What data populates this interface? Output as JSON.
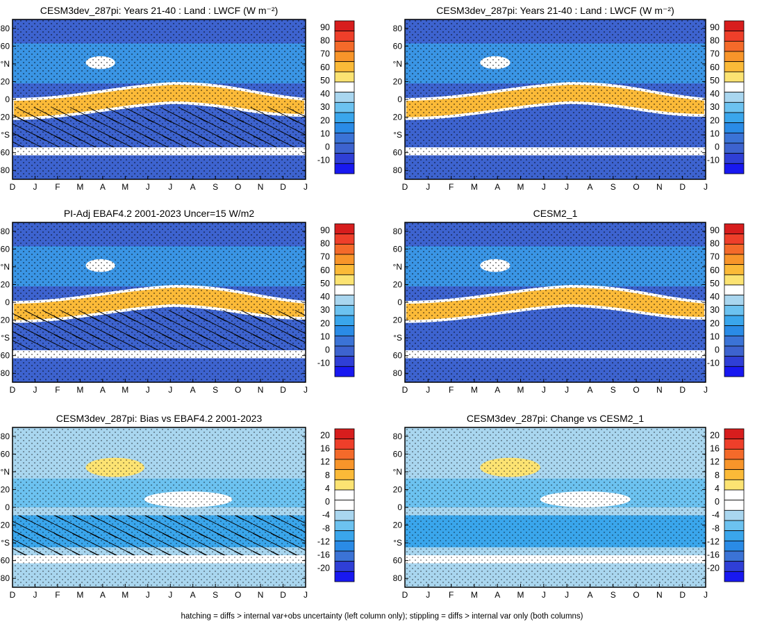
{
  "months": [
    "D",
    "J",
    "F",
    "M",
    "A",
    "M",
    "J",
    "J",
    "A",
    "S",
    "O",
    "N",
    "D",
    "J"
  ],
  "y_tick_labels": [
    "80",
    "60",
    "°N",
    "20",
    "0",
    "20",
    "°S",
    "60",
    "80"
  ],
  "footnote": "hatching = diffs > internal var+obs uncertainty (left column only); stippling = diffs > internal var only (both columns)",
  "colorbars": {
    "absolute": {
      "labels": [
        "90",
        "80",
        "70",
        "60",
        "50",
        "40",
        "30",
        "20",
        "10",
        "0",
        "-10"
      ],
      "colors": [
        "#d71d1d",
        "#ee3f2a",
        "#f46a2a",
        "#f8952a",
        "#fbba38",
        "#fce372",
        "#ffffff",
        "#a9d6ef",
        "#6cc2f0",
        "#3aa6ec",
        "#2a8be6",
        "#3b73d6",
        "#3d63cf",
        "#2f3fd6",
        "#1818f0"
      ]
    },
    "difference": {
      "labels": [
        "20",
        "16",
        "12",
        "8",
        "4",
        "0",
        "-4",
        "-8",
        "-12",
        "-16",
        "-20"
      ],
      "colors": [
        "#d71d1d",
        "#ee3f2a",
        "#f46a2a",
        "#f8952a",
        "#fbba38",
        "#fce372",
        "#ffffff",
        "#ffffff",
        "#a9d6ef",
        "#6cc2f0",
        "#3aa6ec",
        "#2a8be6",
        "#3b73d6",
        "#2f3fd6",
        "#1818f0"
      ]
    }
  },
  "chart_data": [
    {
      "type": "heatmap",
      "title": "CESM3dev_287pi: Years 21-40 : Land : LWCF (W m⁻²)",
      "colorbar": "absolute",
      "hatching": true,
      "zmin": -10,
      "zmax": 90
    },
    {
      "type": "heatmap",
      "title": "CESM3dev_287pi: Years 21-40 : Land : LWCF (W m⁻²)",
      "colorbar": "absolute",
      "hatching": false,
      "zmin": -10,
      "zmax": 90
    },
    {
      "type": "heatmap",
      "title": "PI-Adj EBAF4.2 2001-2023 Uncer=15 W/m2",
      "colorbar": "absolute",
      "hatching": true,
      "zmin": -10,
      "zmax": 90
    },
    {
      "type": "heatmap",
      "title": "CESM2_1",
      "colorbar": "absolute",
      "hatching": false,
      "zmin": -10,
      "zmax": 90
    },
    {
      "type": "heatmap",
      "title": "CESM3dev_287pi: Bias vs EBAF4.2 2001-2023",
      "colorbar": "difference",
      "hatching": true,
      "zmin": -20,
      "zmax": 20
    },
    {
      "type": "heatmap",
      "title": "CESM3dev_287pi: Change vs CESM2_1",
      "colorbar": "difference",
      "hatching": false,
      "zmin": -20,
      "zmax": 20
    }
  ]
}
